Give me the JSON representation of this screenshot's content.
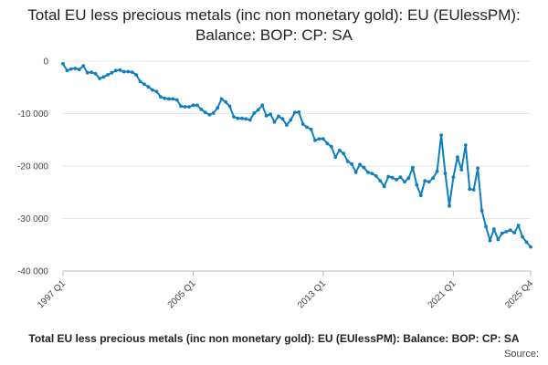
{
  "chart_data": {
    "type": "line",
    "title": "Total EU less precious metals (inc non monetary gold): EU (EUlessPM): Balance: BOP: CP: SA",
    "xlabel": "",
    "ylabel": "",
    "ylim": [
      -40000,
      0
    ],
    "yticks": [
      0,
      -10000,
      -20000,
      -30000,
      -40000
    ],
    "ytick_labels": [
      "0",
      "-10 000",
      "-20 000",
      "-30 000",
      "-40 000"
    ],
    "xtick_labels": [
      "1997 Q1",
      "2005 Q1",
      "2013 Q1",
      "2021 Q1",
      "2025 Q4"
    ],
    "xtick_index": [
      0,
      32,
      64,
      96,
      115
    ],
    "grid": true,
    "legend_position": "bottom",
    "series": [
      {
        "name": "Total EU less precious metals (inc non monetary gold): EU (EUlessPM): Balance: BOP: CP: SA",
        "color": "#0f7ec0",
        "values": [
          -500,
          -1800,
          -1500,
          -1400,
          -1600,
          -900,
          -2200,
          -2100,
          -2400,
          -3300,
          -3000,
          -2600,
          -2200,
          -1800,
          -1700,
          -2000,
          -2000,
          -2100,
          -2600,
          -3900,
          -4400,
          -4900,
          -5500,
          -5800,
          -6800,
          -7100,
          -7200,
          -7200,
          -7400,
          -8600,
          -8700,
          -8700,
          -8400,
          -8400,
          -9200,
          -9800,
          -10200,
          -9900,
          -8900,
          -7200,
          -7800,
          -8600,
          -10600,
          -10900,
          -10900,
          -11000,
          -11200,
          -9900,
          -9300,
          -8400,
          -10400,
          -10100,
          -11600,
          -10500,
          -11000,
          -12200,
          -11200,
          -9800,
          -9700,
          -12000,
          -12600,
          -13000,
          -15100,
          -14800,
          -14800,
          -15700,
          -16300,
          -18300,
          -17000,
          -17600,
          -19100,
          -19600,
          -21200,
          -19700,
          -20300,
          -21200,
          -21400,
          -21900,
          -22800,
          -23900,
          -22000,
          -22200,
          -22600,
          -22100,
          -23000,
          -22300,
          -20300,
          -23600,
          -25600,
          -22800,
          -23000,
          -22300,
          -21000,
          -14100,
          -21400,
          -27600,
          -22100,
          -18300,
          -20700,
          -16000,
          -24400,
          -24500,
          -20400,
          -28500,
          -31500,
          -34200,
          -32000,
          -34000,
          -32800,
          -32500,
          -32200,
          -32700,
          -31300,
          -33500,
          -34500,
          -35400
        ]
      }
    ]
  },
  "footer": {
    "legend_label": "Total EU less precious metals (inc non monetary gold): EU (EUlessPM): Balance: BOP: CP: SA",
    "source_label": "Source:"
  }
}
